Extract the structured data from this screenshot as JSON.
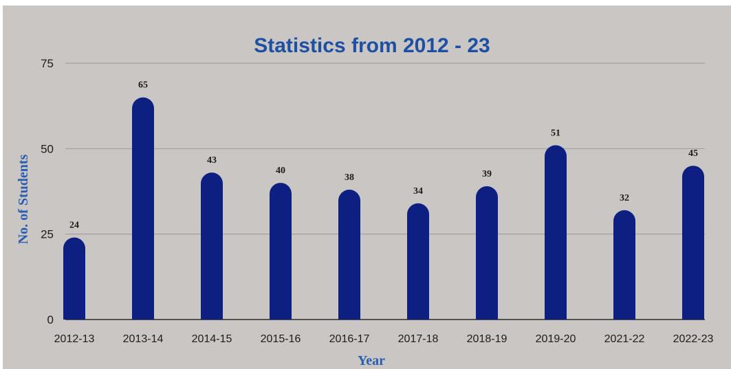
{
  "chart_data": {
    "type": "bar",
    "title": "Statistics from 2012 - 23",
    "xlabel": "Year",
    "ylabel": "No. of Students",
    "categories": [
      "2012-13",
      "2013-14",
      "2014-15",
      "2015-16",
      "2016-17",
      "2017-18",
      "2018-19",
      "2019-20",
      "2021-22",
      "2022-23"
    ],
    "values": [
      24,
      65,
      43,
      40,
      38,
      34,
      39,
      51,
      32,
      45
    ],
    "data_labels": [
      "24",
      "65",
      "43",
      "40",
      "38",
      "34",
      "39",
      "51",
      "32",
      "45"
    ],
    "ylim": [
      0,
      75
    ],
    "yticks": [
      0,
      25,
      50,
      75
    ],
    "grid": true,
    "legend": "none"
  },
  "colors": {
    "background": "#c9c6c4",
    "bar": "#0d1f80",
    "title": "#1d4fa3",
    "axis_label": "#2a5db0",
    "grid": "#9c9a98",
    "baseline": "#2a2a2a"
  }
}
